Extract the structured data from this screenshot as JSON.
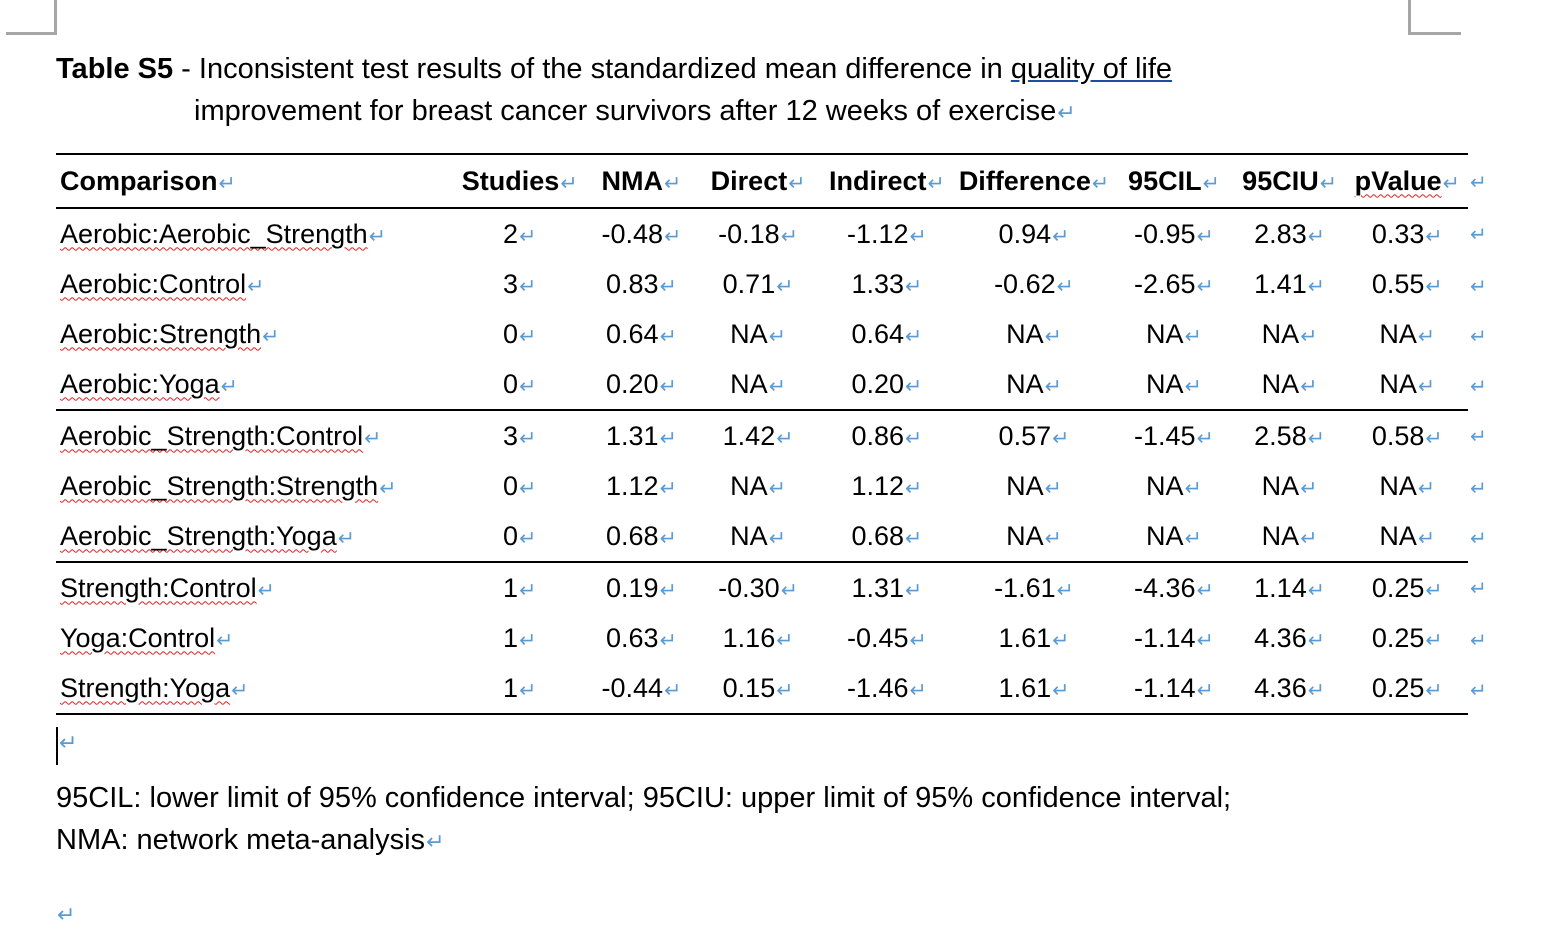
{
  "caption": {
    "label": "Table S5",
    "text_before_link": " - Inconsistent test results of the standardized mean difference in ",
    "link_text": "quality of life",
    "line2": "improvement for breast cancer survivors after 12 weeks of exercise"
  },
  "formatting_marks": {
    "paragraph_mark": "↵"
  },
  "table": {
    "headers": [
      "Comparison",
      "Studies",
      "NMA",
      "Direct",
      "Indirect",
      "Difference",
      "95CIL",
      "95CIU",
      "pValue"
    ],
    "rows": [
      [
        "Aerobic:Aerobic_Strength",
        "2",
        "-0.48",
        "-0.18",
        "-1.12",
        "0.94",
        "-0.95",
        "2.83",
        "0.33"
      ],
      [
        "Aerobic:Control",
        "3",
        "0.83",
        "0.71",
        "1.33",
        "-0.62",
        "-2.65",
        "1.41",
        "0.55"
      ],
      [
        "Aerobic:Strength",
        "0",
        "0.64",
        "NA",
        "0.64",
        "NA",
        "NA",
        "NA",
        "NA"
      ],
      [
        "Aerobic:Yoga",
        "0",
        "0.20",
        "NA",
        "0.20",
        "NA",
        "NA",
        "NA",
        "NA"
      ],
      [
        "Aerobic_Strength:Control",
        "3",
        "1.31",
        "1.42",
        "0.86",
        "0.57",
        "-1.45",
        "2.58",
        "0.58"
      ],
      [
        "Aerobic_Strength:Strength",
        "0",
        "1.12",
        "NA",
        "1.12",
        "NA",
        "NA",
        "NA",
        "NA"
      ],
      [
        "Aerobic_Strength:Yoga",
        "0",
        "0.68",
        "NA",
        "0.68",
        "NA",
        "NA",
        "NA",
        "NA"
      ],
      [
        "Strength:Control",
        "1",
        "0.19",
        "-0.30",
        "1.31",
        "-1.61",
        "-4.36",
        "1.14",
        "0.25"
      ],
      [
        "Yoga:Control",
        "1",
        "0.63",
        "1.16",
        "-0.45",
        "1.61",
        "-1.14",
        "4.36",
        "0.25"
      ],
      [
        "Strength:Yoga",
        "1",
        "-0.44",
        "0.15",
        "-1.46",
        "1.61",
        "-1.14",
        "4.36",
        "0.25"
      ]
    ]
  },
  "footnote": {
    "line1": "95CIL: lower limit of 95% confidence interval; 95CIU: upper limit of 95% confidence interval;",
    "line2": "NMA: network meta-analysis"
  },
  "colors": {
    "formatting_mark": "#5b9bd5",
    "spelling_squiggle": "#e02020",
    "link_underline": "#1f4e9e",
    "page_corner_marks": "#a6a6a6"
  }
}
